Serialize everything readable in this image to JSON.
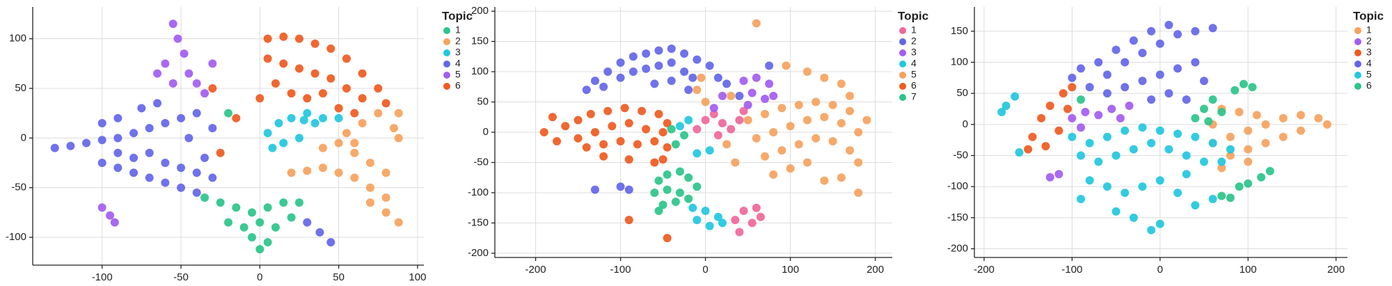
{
  "chart_data": [
    {
      "type": "scatter",
      "legend_title": "Topic",
      "xlim": [
        -144,
        104
      ],
      "ylim": [
        -128,
        132
      ],
      "xticks": [
        -100,
        -50,
        0,
        50,
        100
      ],
      "yticks": [
        -100,
        -50,
        0,
        50,
        100
      ],
      "grid": true,
      "series": [
        {
          "name": "1",
          "color": "#2bc48a",
          "x": [
            -35,
            -25,
            -15,
            -5,
            5,
            15,
            25,
            -20,
            -10,
            0,
            10,
            -5,
            5,
            0,
            20,
            -20
          ],
          "values": [
            -60,
            -65,
            -70,
            -75,
            -70,
            -65,
            -65,
            -85,
            -90,
            -85,
            -90,
            -100,
            -105,
            -112,
            -80,
            25
          ]
        },
        {
          "name": "2",
          "color": "#f5a25d",
          "x": [
            20,
            30,
            40,
            50,
            60,
            70,
            80,
            88,
            40,
            50,
            60,
            70,
            80,
            55,
            65,
            75,
            85,
            70,
            80,
            88,
            88,
            60
          ],
          "values": [
            -35,
            -33,
            -30,
            -35,
            -40,
            -50,
            -60,
            -85,
            -10,
            -5,
            -15,
            -25,
            -35,
            5,
            15,
            25,
            10,
            -65,
            -75,
            0,
            25,
            -5
          ]
        },
        {
          "name": "3",
          "color": "#22c7e0",
          "x": [
            5,
            12,
            20,
            28,
            35,
            15,
            25,
            40,
            8,
            30,
            50
          ],
          "values": [
            5,
            15,
            20,
            18,
            15,
            -5,
            0,
            20,
            -10,
            25,
            20
          ]
        },
        {
          "name": "4",
          "color": "#6366e8",
          "x": [
            -130,
            -120,
            -110,
            -100,
            -90,
            -80,
            -70,
            -60,
            -50,
            -40,
            -30,
            -100,
            -90,
            -80,
            -70,
            -60,
            -50,
            -40,
            -90,
            -80,
            -70,
            -60,
            -50,
            -40,
            -35,
            -45,
            -30,
            30,
            38,
            45,
            -100,
            -90,
            -75,
            -65
          ],
          "values": [
            -10,
            -8,
            -5,
            -2,
            0,
            5,
            10,
            15,
            20,
            25,
            10,
            -25,
            -30,
            -35,
            -40,
            -45,
            -50,
            -55,
            -15,
            -20,
            -15,
            -25,
            -30,
            -35,
            -20,
            0,
            -40,
            -85,
            -95,
            -105,
            15,
            20,
            30,
            35
          ]
        },
        {
          "name": "5",
          "color": "#a35cf0",
          "x": [
            -55,
            -52,
            -48,
            -60,
            -65,
            -45,
            -55,
            -40,
            -35,
            -30,
            -100,
            -95,
            -92
          ],
          "values": [
            115,
            100,
            85,
            75,
            65,
            65,
            55,
            55,
            45,
            75,
            -70,
            -78,
            -85
          ]
        },
        {
          "name": "6",
          "color": "#ef5a1f",
          "x": [
            5,
            15,
            25,
            35,
            45,
            55,
            65,
            75,
            80,
            5,
            15,
            25,
            35,
            45,
            55,
            65,
            10,
            20,
            30,
            40,
            50,
            60,
            0,
            -15,
            -25,
            -30
          ],
          "values": [
            100,
            102,
            100,
            95,
            90,
            80,
            65,
            50,
            35,
            80,
            75,
            70,
            65,
            60,
            50,
            40,
            55,
            45,
            40,
            45,
            30,
            25,
            40,
            20,
            -15,
            50
          ]
        }
      ]
    },
    {
      "type": "scatter",
      "legend_title": "Topic",
      "xlim": [
        -248,
        220
      ],
      "ylim": [
        -207,
        207
      ],
      "xticks": [
        -200,
        -100,
        0,
        100,
        200
      ],
      "yticks": [
        -200,
        -150,
        -100,
        -50,
        0,
        50,
        100,
        150,
        200
      ],
      "grid": true,
      "series": [
        {
          "name": "1",
          "color": "#f0679a",
          "x": [
            0,
            10,
            20,
            30,
            40,
            15,
            45,
            -10,
            35,
            45,
            55,
            65,
            40,
            60
          ],
          "values": [
            20,
            30,
            15,
            5,
            20,
            -5,
            35,
            5,
            -145,
            -130,
            -150,
            -140,
            -165,
            -125
          ]
        },
        {
          "name": "2",
          "color": "#6366e8",
          "x": [
            -140,
            -130,
            -115,
            -100,
            -85,
            -70,
            -55,
            -40,
            -25,
            -10,
            -120,
            -100,
            -85,
            -70,
            -55,
            -40,
            -25,
            -15,
            -60,
            -40,
            -20,
            5,
            15,
            25,
            40,
            -100,
            -90,
            -130,
            75
          ],
          "values": [
            70,
            85,
            100,
            115,
            125,
            130,
            135,
            138,
            130,
            120,
            75,
            90,
            100,
            105,
            110,
            115,
            100,
            90,
            80,
            85,
            70,
            110,
            90,
            80,
            60,
            -90,
            -95,
            -95,
            110
          ]
        },
        {
          "name": "3",
          "color": "#a35cf0",
          "x": [
            45,
            60,
            75,
            55,
            70,
            80,
            20,
            10,
            50
          ],
          "values": [
            85,
            90,
            80,
            65,
            55,
            60,
            60,
            40,
            45
          ]
        },
        {
          "name": "4",
          "color": "#22c7e0",
          "x": [
            -15,
            0,
            15,
            5,
            20,
            -10,
            -30,
            -20,
            -10,
            5
          ],
          "values": [
            -125,
            -130,
            -140,
            -155,
            -150,
            -145,
            10,
            20,
            -35,
            -30
          ]
        },
        {
          "name": "5",
          "color": "#f5a25d",
          "x": [
            50,
            70,
            90,
            110,
            130,
            150,
            170,
            190,
            60,
            80,
            100,
            120,
            140,
            160,
            180,
            70,
            90,
            110,
            130,
            150,
            170,
            80,
            100,
            120,
            140,
            160,
            180,
            60,
            95,
            120,
            140,
            160,
            170,
            -10,
            -5,
            0,
            30,
            35,
            25,
            180
          ],
          "values": [
            20,
            30,
            40,
            45,
            50,
            45,
            35,
            20,
            -10,
            0,
            10,
            20,
            25,
            15,
            0,
            -40,
            -30,
            -20,
            -10,
            -15,
            -30,
            -70,
            -60,
            -50,
            -80,
            -75,
            -50,
            180,
            110,
            100,
            90,
            80,
            60,
            70,
            90,
            50,
            60,
            -50,
            -20,
            -100
          ]
        },
        {
          "name": "6",
          "color": "#ef5a1f",
          "x": [
            -190,
            -175,
            -165,
            -150,
            -135,
            -115,
            -95,
            -75,
            -55,
            -45,
            -150,
            -130,
            -110,
            -90,
            -70,
            -50,
            -140,
            -120,
            -100,
            -80,
            -60,
            -45,
            -120,
            -90,
            -60,
            -50,
            -180,
            -90,
            -45
          ],
          "values": [
            0,
            -15,
            10,
            20,
            30,
            35,
            40,
            35,
            30,
            15,
            -10,
            0,
            10,
            15,
            5,
            0,
            -25,
            -20,
            -15,
            -20,
            -15,
            -25,
            -40,
            -45,
            -50,
            -45,
            25,
            -145,
            -175
          ]
        },
        {
          "name": "7",
          "color": "#2bc48a",
          "x": [
            -55,
            -45,
            -30,
            -20,
            -10,
            -60,
            -45,
            -30,
            -50,
            -35,
            -20,
            -55,
            -35,
            -40,
            -25
          ],
          "values": [
            -80,
            -70,
            -65,
            -75,
            -90,
            -100,
            -95,
            -100,
            -120,
            -115,
            -110,
            -130,
            -20,
            5,
            -5
          ]
        }
      ]
    },
    {
      "type": "scatter",
      "legend_title": "Topic",
      "xlim": [
        -211,
        213
      ],
      "ylim": [
        -214,
        189
      ],
      "xticks": [
        -200,
        -100,
        0,
        100,
        200
      ],
      "yticks": [
        -200,
        -150,
        -100,
        -50,
        0,
        50,
        100,
        150
      ],
      "grid": true,
      "series": [
        {
          "name": "1",
          "color": "#f5a25d",
          "x": [
            60,
            80,
            100,
            120,
            140,
            160,
            180,
            190,
            80,
            100,
            120,
            140,
            160,
            90,
            110,
            70,
            100,
            60,
            70
          ],
          "values": [
            -30,
            -20,
            -10,
            0,
            10,
            15,
            10,
            0,
            -50,
            -40,
            -30,
            -20,
            -10,
            20,
            15,
            -70,
            -60,
            0,
            25
          ]
        },
        {
          "name": "2",
          "color": "#a35cf0",
          "x": [
            -100,
            -85,
            -70,
            -55,
            -45,
            -90,
            -125,
            -115,
            -35
          ],
          "values": [
            10,
            20,
            15,
            25,
            10,
            -5,
            -85,
            -80,
            30
          ]
        },
        {
          "name": "3",
          "color": "#ef5a1f",
          "x": [
            -145,
            -135,
            -125,
            -110,
            -100,
            -130,
            -115,
            -105,
            -150
          ],
          "values": [
            -20,
            10,
            30,
            50,
            60,
            -35,
            -10,
            25,
            -40
          ]
        },
        {
          "name": "4",
          "color": "#6366e8",
          "x": [
            -80,
            -60,
            -40,
            -20,
            0,
            20,
            40,
            60,
            -70,
            -50,
            -30,
            -10,
            10,
            -60,
            -40,
            -20,
            0,
            20,
            40,
            50,
            -10,
            10,
            30,
            -90,
            -100
          ],
          "values": [
            60,
            80,
            100,
            115,
            130,
            145,
            150,
            155,
            100,
            120,
            135,
            150,
            160,
            50,
            60,
            70,
            80,
            90,
            100,
            70,
            40,
            50,
            40,
            90,
            75
          ]
        },
        {
          "name": "5",
          "color": "#22c7e0",
          "x": [
            -100,
            -80,
            -60,
            -40,
            -20,
            0,
            20,
            40,
            60,
            80,
            -90,
            -70,
            -50,
            -30,
            -10,
            10,
            30,
            50,
            70,
            -80,
            -60,
            -40,
            -20,
            0,
            20,
            40,
            60,
            -50,
            -30,
            -10,
            0,
            -180,
            -175,
            -165,
            -160,
            -90,
            30
          ],
          "values": [
            -20,
            -30,
            -20,
            -10,
            -5,
            -10,
            -15,
            -20,
            -30,
            -40,
            -50,
            -60,
            -50,
            -40,
            -30,
            -40,
            -50,
            -60,
            -60,
            -90,
            -100,
            -110,
            -100,
            -90,
            -110,
            -130,
            -120,
            -140,
            -150,
            -170,
            -160,
            20,
            30,
            45,
            -45,
            -120,
            -80
          ]
        },
        {
          "name": "6",
          "color": "#2bc48a",
          "x": [
            40,
            50,
            60,
            55,
            70,
            85,
            95,
            105,
            90,
            100,
            115,
            125,
            70,
            80,
            -90
          ],
          "values": [
            10,
            25,
            40,
            5,
            20,
            55,
            65,
            60,
            -100,
            -95,
            -85,
            -75,
            -115,
            -118,
            40
          ]
        }
      ]
    }
  ]
}
